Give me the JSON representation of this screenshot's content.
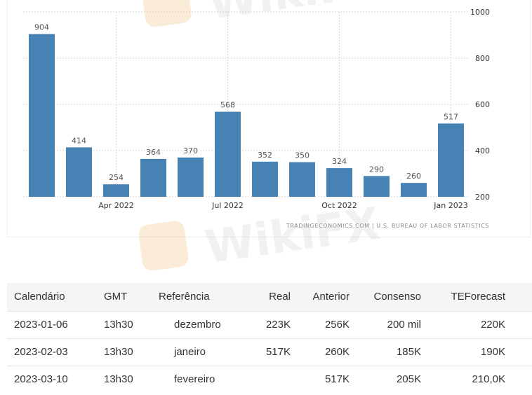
{
  "chart_data": {
    "type": "bar",
    "values": [
      904,
      414,
      254,
      364,
      370,
      568,
      352,
      350,
      324,
      290,
      260,
      517
    ],
    "x_ticks": [
      {
        "label": "Apr 2022",
        "bar": 2
      },
      {
        "label": "Jul 2022",
        "bar": 5
      },
      {
        "label": "Oct 2022",
        "bar": 8
      },
      {
        "label": "Jan 2023",
        "bar": 11
      }
    ],
    "y_ticks": [
      200,
      400,
      600,
      800,
      1000
    ],
    "ylim": [
      200,
      1000
    ],
    "grid": true,
    "bar_color": "#4682b4",
    "source": "TRADINGECONOMICS.COM | U.S. BUREAU OF LABOR STATISTICS"
  },
  "table": {
    "headers": [
      "Calendário",
      "GMT",
      "Referência",
      "Real",
      "Anterior",
      "Consenso",
      "TEForecast"
    ],
    "rows": [
      [
        "2023-01-06",
        "13h30",
        "dezembro",
        "223K",
        "256K",
        "200 mil",
        "220K"
      ],
      [
        "2023-02-03",
        "13h30",
        "janeiro",
        "517K",
        "260K",
        "185K",
        "190K"
      ],
      [
        "2023-03-10",
        "13h30",
        "fevereiro",
        "",
        "517K",
        "205K",
        "210,0K"
      ]
    ]
  },
  "watermark": "WikiFX"
}
